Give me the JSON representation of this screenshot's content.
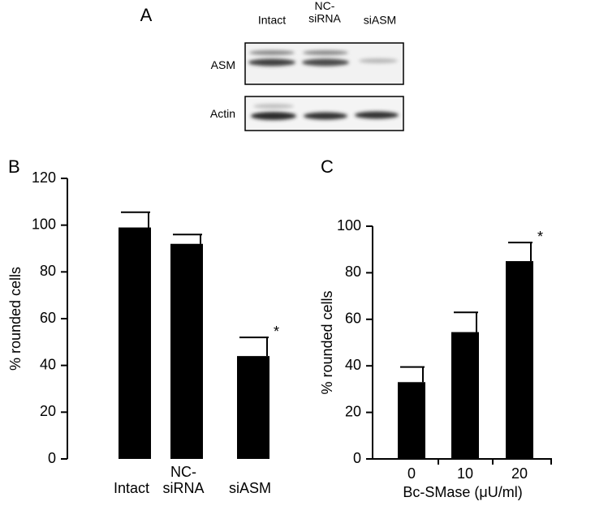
{
  "blot": {
    "panel": "A",
    "lanes": [
      "Intact",
      "NC-\nsiRNA",
      "siASM"
    ],
    "rows": [
      "ASM",
      "Actin"
    ]
  },
  "chart_data": [
    {
      "type": "bar",
      "panel": "B",
      "ylabel": "% rounded cells",
      "categories": [
        "Intact",
        "NC-\nsiRNA",
        "siASM"
      ],
      "values": [
        99,
        92,
        44
      ],
      "errors": [
        6.5,
        4,
        8
      ],
      "significance": [
        null,
        null,
        "*"
      ],
      "color": "#000000",
      "ylim": [
        0,
        120
      ],
      "yticks": [
        0,
        20,
        40,
        60,
        80,
        100,
        120
      ]
    },
    {
      "type": "bar",
      "panel": "C",
      "ylabel": "% rounded cells",
      "xlabel": "Bc-SMase (μU/ml)",
      "categories": [
        "0",
        "10",
        "20"
      ],
      "values": [
        33,
        54.5,
        85
      ],
      "errors": [
        6.5,
        8.5,
        8
      ],
      "significance": [
        null,
        null,
        "*"
      ],
      "color": "#000000",
      "ylim": [
        0,
        100
      ],
      "yticks": [
        0,
        20,
        40,
        60,
        80,
        100
      ]
    }
  ]
}
